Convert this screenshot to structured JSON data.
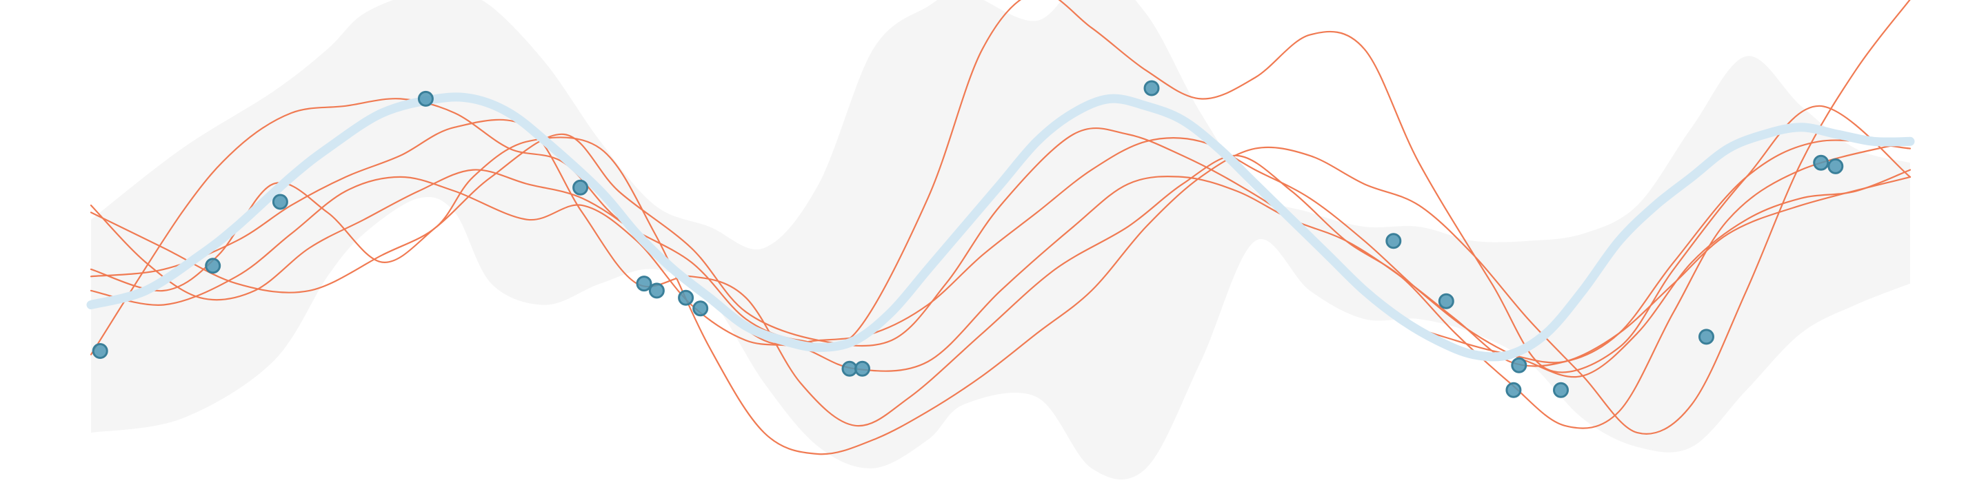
{
  "chart_data": {
    "type": "line",
    "title": "",
    "xlabel": "",
    "ylabel": "",
    "xlim": [
      0,
      100
    ],
    "ylim": [
      -3.2,
      3.2
    ],
    "grid": false,
    "axes_visible": false,
    "colors": {
      "band": "#f5f5f5",
      "mean": "#d3e7f3",
      "samples": "#f07a52",
      "points_fill": "#4f98b5",
      "points_edge": "#3a7f99"
    },
    "uncertainty_band": {
      "x": [
        0,
        5,
        10,
        13,
        15,
        18,
        20,
        22,
        25,
        28,
        31,
        34,
        37,
        40,
        43,
        46,
        48,
        52,
        55,
        58,
        61,
        64,
        67,
        70,
        73,
        76,
        79,
        82,
        85,
        88,
        91,
        94,
        97,
        100
      ],
      "upper": [
        0.4,
        1.4,
        2.2,
        2.8,
        3.3,
        3.6,
        3.6,
        3.4,
        2.6,
        1.5,
        0.6,
        0.3,
        0.0,
        0.9,
        2.8,
        3.4,
        3.6,
        3.2,
        3.9,
        3.3,
        1.9,
        0.8,
        0.5,
        0.3,
        0.3,
        0.1,
        0.1,
        0.2,
        0.6,
        1.7,
        2.7,
        2.0,
        1.4,
        1.2
      ],
      "lower": [
        -2.6,
        -2.4,
        -1.6,
        -0.4,
        0.2,
        0.7,
        0.5,
        -0.5,
        -0.8,
        -0.5,
        -0.3,
        -0.7,
        -1.9,
        -2.8,
        -3.1,
        -2.7,
        -2.2,
        -2.1,
        -3.1,
        -3.1,
        -1.6,
        0.1,
        -0.6,
        -1.0,
        -1.0,
        -1.2,
        -1.6,
        -2.4,
        -2.8,
        -2.8,
        -2.0,
        -1.2,
        -0.8,
        -0.5
      ]
    },
    "mean": {
      "x": [
        0,
        3,
        6,
        8,
        11,
        13,
        16,
        19,
        21,
        23,
        25,
        28,
        30,
        32,
        34,
        36,
        38,
        40,
        42,
        44,
        46,
        48,
        50,
        52,
        54,
        56,
        58,
        60,
        62,
        64,
        66,
        68,
        70,
        72,
        74,
        76,
        78,
        80,
        82,
        84,
        86,
        88,
        90,
        92,
        94,
        96,
        98,
        100
      ],
      "y": [
        -0.8,
        -0.6,
        -0.1,
        0.3,
        1.0,
        1.4,
        1.9,
        2.1,
        2.1,
        1.9,
        1.5,
        0.8,
        0.2,
        -0.3,
        -0.7,
        -1.1,
        -1.3,
        -1.4,
        -1.3,
        -0.9,
        -0.3,
        0.3,
        0.9,
        1.5,
        1.9,
        2.1,
        2.0,
        1.8,
        1.4,
        0.9,
        0.4,
        -0.1,
        -0.6,
        -1.0,
        -1.3,
        -1.5,
        -1.5,
        -1.2,
        -0.6,
        0.1,
        0.6,
        1.0,
        1.4,
        1.6,
        1.7,
        1.6,
        1.5,
        1.5
      ]
    },
    "samples": [
      {
        "x": [
          0,
          5,
          8,
          11,
          14,
          17,
          20,
          23,
          26,
          29,
          33,
          36,
          39,
          42,
          46,
          49,
          52,
          55,
          58,
          61,
          64,
          67,
          70,
          73,
          77,
          80,
          84,
          87,
          91,
          95,
          100
        ],
        "y": [
          -1.5,
          0.5,
          1.4,
          1.9,
          2.0,
          2.1,
          1.9,
          1.4,
          1.2,
          0.4,
          -0.2,
          -1.0,
          -1.3,
          -1.2,
          0.7,
          2.8,
          3.6,
          3.1,
          2.5,
          2.1,
          2.4,
          3.0,
          2.8,
          1.2,
          -0.5,
          -1.7,
          -1.4,
          -0.3,
          1.0,
          2.0,
          1.0
        ]
      },
      {
        "x": [
          0,
          4,
          7,
          10,
          13,
          16,
          19,
          22,
          26,
          29,
          33,
          36,
          40,
          44,
          47,
          50,
          54,
          57,
          60,
          63,
          66,
          69,
          72,
          75,
          78,
          81,
          84,
          87,
          91,
          95,
          100
        ],
        "y": [
          -0.3,
          -0.6,
          -0.1,
          0.9,
          0.5,
          -0.2,
          0.3,
          1.0,
          1.6,
          0.8,
          0.0,
          -0.9,
          -1.3,
          -1.3,
          -0.5,
          0.6,
          1.6,
          1.6,
          1.3,
          0.9,
          0.4,
          -0.3,
          -1.0,
          -1.3,
          -1.5,
          -1.6,
          -1.2,
          -0.2,
          1.0,
          1.5,
          1.4
        ]
      },
      {
        "x": [
          0,
          4,
          8,
          11,
          14,
          17,
          20,
          24,
          27,
          30,
          33,
          36,
          39,
          42,
          45,
          49,
          53,
          57,
          60,
          63,
          66,
          69,
          72,
          75,
          78,
          81,
          84,
          87,
          90,
          94,
          100
        ],
        "y": [
          -0.4,
          -0.3,
          0.1,
          0.6,
          1.0,
          1.3,
          1.7,
          1.7,
          0.5,
          -0.5,
          -0.4,
          -0.7,
          -1.9,
          -2.5,
          -2.1,
          -1.2,
          -0.3,
          0.3,
          0.9,
          1.3,
          0.8,
          0.1,
          -0.4,
          -1.2,
          -1.9,
          -2.5,
          -2.3,
          -0.9,
          0.4,
          1.1,
          1.5
        ]
      },
      {
        "x": [
          0,
          4,
          8,
          11,
          14,
          17,
          20,
          24,
          27,
          30,
          33,
          36,
          39,
          42,
          46,
          50,
          54,
          57,
          60,
          63,
          66,
          69,
          72,
          75,
          78,
          81,
          84,
          87,
          90,
          94,
          100
        ],
        "y": [
          -0.6,
          -0.8,
          -0.4,
          0.2,
          0.8,
          1.0,
          0.8,
          0.4,
          0.6,
          0.1,
          -0.8,
          -1.3,
          -1.4,
          -1.7,
          -1.6,
          -0.6,
          0.3,
          0.9,
          1.0,
          0.8,
          0.4,
          0.1,
          -0.4,
          -1.0,
          -1.6,
          -1.6,
          -1.2,
          -0.5,
          0.2,
          0.6,
          1.0
        ]
      },
      {
        "x": [
          0,
          3,
          6,
          9,
          12,
          15,
          18,
          21,
          24,
          27,
          30,
          33,
          37,
          40,
          43,
          46,
          49,
          52,
          55,
          58,
          61,
          64,
          67,
          70,
          73,
          76,
          79,
          82,
          85,
          88,
          91,
          94,
          97,
          100
        ],
        "y": [
          0.6,
          -0.2,
          -0.7,
          -0.6,
          0.0,
          0.4,
          0.8,
          1.1,
          0.9,
          0.7,
          0.2,
          -0.5,
          -1.3,
          -1.3,
          -1.2,
          -0.8,
          -0.1,
          0.5,
          1.1,
          1.5,
          1.5,
          1.1,
          0.7,
          0.1,
          -0.6,
          -1.2,
          -1.6,
          -1.8,
          -1.2,
          -0.2,
          0.4,
          0.7,
          0.8,
          1.1
        ]
      },
      {
        "x": [
          0,
          4,
          8,
          12,
          16,
          19,
          21,
          24,
          28,
          31,
          34,
          37,
          40,
          43,
          46,
          49,
          52,
          55,
          58,
          61,
          64,
          67,
          70,
          73,
          76,
          79,
          82,
          85,
          88,
          91,
          94,
          97,
          100
        ],
        "y": [
          0.5,
          0.0,
          -0.5,
          -0.6,
          -0.1,
          0.3,
          1.0,
          1.5,
          1.4,
          0.2,
          -1.4,
          -2.6,
          -2.9,
          -2.7,
          -2.3,
          -1.8,
          -1.2,
          -0.6,
          0.3,
          1.0,
          1.4,
          1.3,
          0.9,
          0.6,
          -0.1,
          -1.0,
          -1.8,
          -2.6,
          -2.2,
          -0.6,
          1.2,
          2.5,
          3.5
        ]
      }
    ],
    "observations": {
      "x": [
        0.5,
        6.7,
        10.4,
        18.4,
        26.9,
        30.4,
        31.1,
        32.7,
        33.5,
        41.7,
        42.4,
        58.3,
        71.6,
        74.5,
        78.2,
        78.5,
        80.8,
        88.8,
        95.1,
        95.9
      ],
      "y": [
        -1.45,
        -0.25,
        0.65,
        2.1,
        0.85,
        -0.5,
        -0.6,
        -0.7,
        -0.85,
        -1.7,
        -1.7,
        2.25,
        0.1,
        -0.75,
        -2.0,
        -1.65,
        -2.0,
        -1.25,
        1.2,
        1.15
      ]
    }
  }
}
